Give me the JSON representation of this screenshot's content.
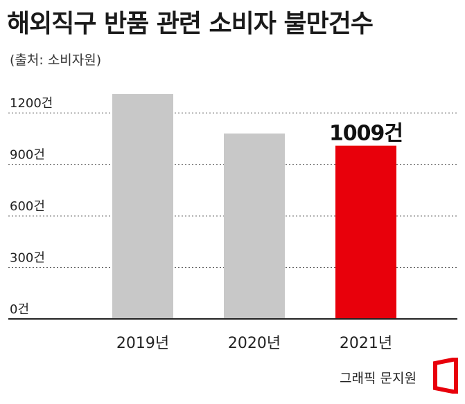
{
  "title": "해외직구 반품 관련 소비자 불만건수",
  "source": "(출처: 소비자원)",
  "credit": "그래픽 문지원",
  "colors": {
    "bar": "#c8c8c8",
    "highlight": "#e8000b",
    "axis": "#222222",
    "grid": "#555555"
  },
  "chart_data": {
    "type": "bar",
    "title": "해외직구 반품 관련 소비자 불만건수",
    "categories": [
      "2019년",
      "2020년",
      "2021년"
    ],
    "values": [
      1310,
      1080,
      1009
    ],
    "highlight_index": 2,
    "ylim": [
      0,
      1350
    ],
    "yticks": [
      0,
      300,
      600,
      900,
      1200
    ],
    "ytick_labels": [
      "0건",
      "300건",
      "600건",
      "900건",
      "1200건"
    ],
    "value_labels": [
      "",
      "",
      "1009건"
    ],
    "grid": true,
    "grid_style": "dotted"
  }
}
